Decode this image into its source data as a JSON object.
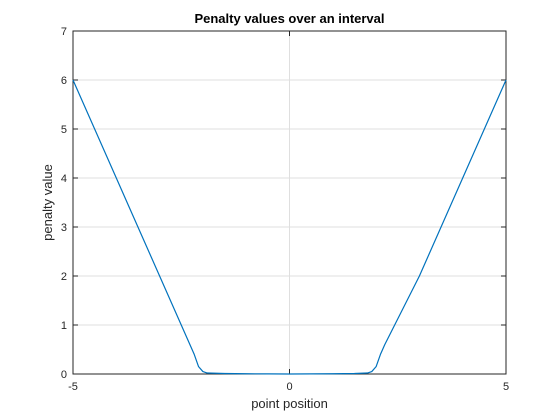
{
  "chart_data": {
    "type": "line",
    "title": "Penalty values over an interval",
    "xlabel": "point position",
    "ylabel": "penalty value",
    "xlim": [
      -5,
      5
    ],
    "ylim": [
      0,
      7
    ],
    "xticks": [
      -5,
      0,
      5
    ],
    "yticks": [
      0,
      1,
      2,
      3,
      4,
      5,
      6,
      7
    ],
    "grid": true,
    "series": [
      {
        "color": "#0072BD",
        "x": [
          -5,
          -4,
          -3,
          -2.2,
          -2.1,
          -2.0,
          -1.9,
          -1.5,
          -1.0,
          -0.5,
          0,
          0.5,
          1.0,
          1.5,
          1.8,
          1.9,
          2.0,
          2.1,
          2.2,
          3,
          4,
          5
        ],
        "y": [
          6.0,
          4.0,
          2.0,
          0.4,
          0.15,
          0.05,
          0.02,
          0.01,
          0.005,
          0.002,
          0.0,
          0.002,
          0.005,
          0.01,
          0.02,
          0.05,
          0.15,
          0.4,
          0.6,
          2.0,
          4.0,
          6.0
        ]
      }
    ]
  }
}
